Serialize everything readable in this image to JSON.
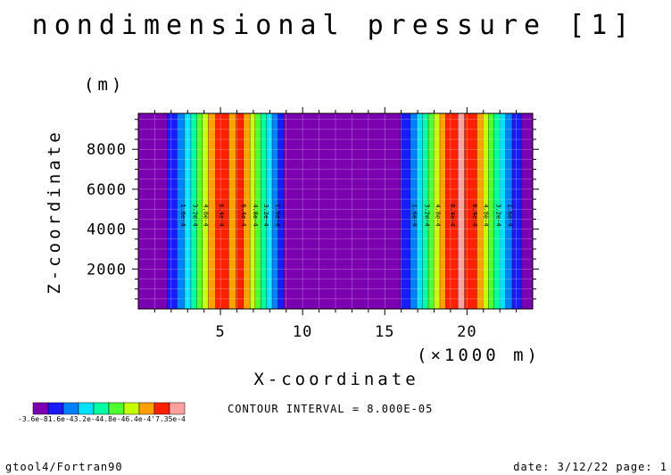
{
  "chart_data": {
    "type": "heatmap",
    "title": "nondimensional pressure [1]",
    "xlabel": "X-coordinate",
    "ylabel": "Z-coordinate",
    "x_unit": "(×1000 m)",
    "y_unit": "(m)",
    "xlim": [
      0,
      24
    ],
    "ylim": [
      0,
      9800
    ],
    "x_ticks": [
      5,
      10,
      15,
      20
    ],
    "y_ticks": [
      2000,
      4000,
      6000,
      8000
    ],
    "x_tick_labels": [
      "5",
      "10",
      "15",
      "20"
    ],
    "y_tick_labels": [
      "2000",
      "4000",
      "6000",
      "8000"
    ],
    "grid": true,
    "contour_interval_text": "CONTOUR INTERVAL = 8.000E-05",
    "levels": [
      -3.6e-08,
      8e-05,
      0.00016,
      0.00024,
      0.00032,
      0.0004,
      0.00048,
      0.00056,
      0.00064,
      0.00072,
      0.000735
    ],
    "colorbar_labels": [
      "-3.6e-8",
      "1.6e-4",
      "3.2e-4",
      "4.8e-4",
      "6.4e-4",
      "7.35e-4"
    ],
    "colorbar_text": "-3.6e-81.6e-43.2e-44.8e-46.4e-4'7.35e-4",
    "colors": [
      "#7a00b0",
      "#1a1aff",
      "#0080ff",
      "#00e0ff",
      "#00ffa0",
      "#50ff30",
      "#c8ff00",
      "#ffa000",
      "#ff2000",
      "#ffa0a0"
    ],
    "bands": [
      {
        "x0": 0.0,
        "x1": 1.75,
        "level": 0
      },
      {
        "x0": 1.75,
        "x1": 2.35,
        "level": 1
      },
      {
        "x0": 2.35,
        "x1": 2.8,
        "level": 2
      },
      {
        "x0": 2.8,
        "x1": 3.2,
        "level": 3
      },
      {
        "x0": 3.2,
        "x1": 3.55,
        "level": 4
      },
      {
        "x0": 3.55,
        "x1": 3.9,
        "level": 5
      },
      {
        "x0": 3.9,
        "x1": 4.25,
        "level": 6
      },
      {
        "x0": 4.25,
        "x1": 4.7,
        "level": 7
      },
      {
        "x0": 4.7,
        "x1": 5.5,
        "level": 8
      },
      {
        "x0": 5.5,
        "x1": 5.95,
        "level": 7
      },
      {
        "x0": 5.95,
        "x1": 6.4,
        "level": 8
      },
      {
        "x0": 6.4,
        "x1": 6.8,
        "level": 7
      },
      {
        "x0": 6.8,
        "x1": 7.1,
        "level": 6
      },
      {
        "x0": 7.1,
        "x1": 7.45,
        "level": 5
      },
      {
        "x0": 7.45,
        "x1": 7.8,
        "level": 4
      },
      {
        "x0": 7.8,
        "x1": 8.15,
        "level": 3
      },
      {
        "x0": 8.15,
        "x1": 8.5,
        "level": 2
      },
      {
        "x0": 8.5,
        "x1": 8.85,
        "level": 1
      },
      {
        "x0": 8.85,
        "x1": 15.95,
        "level": 0
      },
      {
        "x0": 15.95,
        "x1": 16.55,
        "level": 1
      },
      {
        "x0": 16.55,
        "x1": 16.95,
        "level": 2
      },
      {
        "x0": 16.95,
        "x1": 17.3,
        "level": 3
      },
      {
        "x0": 17.3,
        "x1": 17.65,
        "level": 4
      },
      {
        "x0": 17.65,
        "x1": 18.0,
        "level": 5
      },
      {
        "x0": 18.0,
        "x1": 18.35,
        "level": 6
      },
      {
        "x0": 18.35,
        "x1": 18.7,
        "level": 7
      },
      {
        "x0": 18.7,
        "x1": 19.45,
        "level": 8
      },
      {
        "x0": 19.45,
        "x1": 19.85,
        "level": 9
      },
      {
        "x0": 19.85,
        "x1": 20.6,
        "level": 8
      },
      {
        "x0": 20.6,
        "x1": 21.0,
        "level": 7
      },
      {
        "x0": 21.0,
        "x1": 21.3,
        "level": 6
      },
      {
        "x0": 21.3,
        "x1": 21.65,
        "level": 5
      },
      {
        "x0": 21.65,
        "x1": 22.0,
        "level": 4
      },
      {
        "x0": 22.0,
        "x1": 22.35,
        "level": 3
      },
      {
        "x0": 22.35,
        "x1": 22.75,
        "level": 2
      },
      {
        "x0": 22.75,
        "x1": 23.3,
        "level": 1
      },
      {
        "x0": 23.3,
        "x1": 24.0,
        "level": 0
      }
    ],
    "contour_labels": [
      {
        "x": 2.6,
        "text": "1.6e-4"
      },
      {
        "x": 3.35,
        "text": "3.2e-4"
      },
      {
        "x": 4.0,
        "text": "4.8e-4"
      },
      {
        "x": 4.95,
        "text": "6.4e-4"
      },
      {
        "x": 6.3,
        "text": "6.4e-4"
      },
      {
        "x": 7.0,
        "text": "4.8e-4"
      },
      {
        "x": 7.65,
        "text": "3.2e-4"
      },
      {
        "x": 8.35,
        "text": "1.6e-4"
      },
      {
        "x": 16.7,
        "text": "1.6e-4"
      },
      {
        "x": 17.45,
        "text": "3.2e-4"
      },
      {
        "x": 18.1,
        "text": "4.8e-4"
      },
      {
        "x": 19.0,
        "text": "6.4e-4"
      },
      {
        "x": 20.35,
        "text": "6.4e-4"
      },
      {
        "x": 21.05,
        "text": "4.8e-4"
      },
      {
        "x": 21.8,
        "text": "3.2e-4"
      },
      {
        "x": 22.5,
        "text": "1.6e-4"
      }
    ]
  },
  "footer": {
    "left": "gtool4/Fortran90",
    "right": "date: 3/12/22 page: 1"
  }
}
